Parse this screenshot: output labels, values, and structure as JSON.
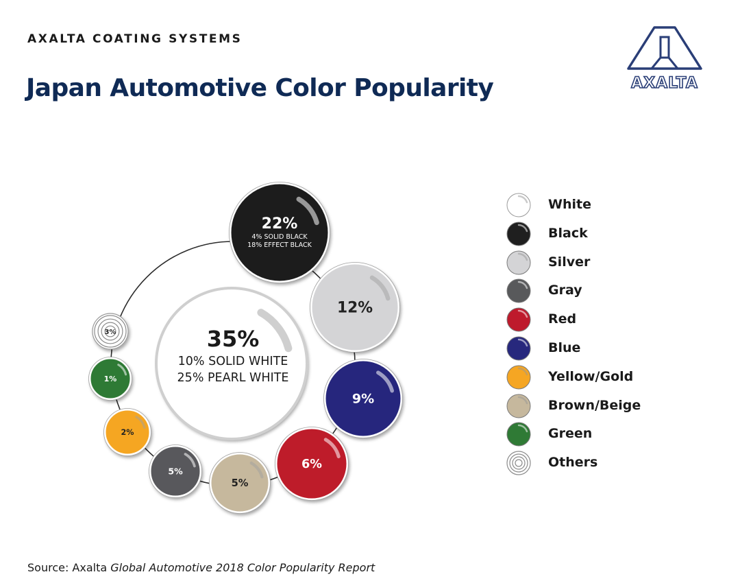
{
  "header": {
    "company": "AXALTA COATING SYSTEMS",
    "title": "Japan Automotive Color Popularity"
  },
  "logo": {
    "wordmark": "AXALTA"
  },
  "chart_data": {
    "type": "bubble",
    "title": "Japan Automotive Color Popularity",
    "center": {
      "name": "White",
      "value": 35,
      "label": "35%",
      "detail1": "10% SOLID WHITE",
      "detail2": "25% PEARL WHITE",
      "color": "#ffffff"
    },
    "bubbles": [
      {
        "name": "Black",
        "value": 22,
        "label": "22%",
        "detail1": "4% SOLID BLACK",
        "detail2": "18% EFFECT BLACK",
        "color": "#1f1f1f",
        "text_color": "#ffffff"
      },
      {
        "name": "Silver",
        "value": 12,
        "label": "12%",
        "color": "#d4d4d6",
        "text_color": "#222222"
      },
      {
        "name": "Blue",
        "value": 9,
        "label": "9%",
        "color": "#27287d",
        "text_color": "#ffffff"
      },
      {
        "name": "Red",
        "value": 6,
        "label": "6%",
        "color": "#be1a2c",
        "text_color": "#ffffff"
      },
      {
        "name": "Brown/Beige",
        "value": 5,
        "label": "5%",
        "color": "#c6b89d",
        "text_color": "#222222"
      },
      {
        "name": "Gray",
        "value": 5,
        "label": "5%",
        "color": "#58595b",
        "text_color": "#ffffff"
      },
      {
        "name": "Yellow/Gold",
        "value": 2,
        "label": "2%",
        "color": "#f5a623",
        "text_color": "#222222"
      },
      {
        "name": "Green",
        "value": 1,
        "label": "1%",
        "color": "#2f7a35",
        "text_color": "#ffffff"
      },
      {
        "name": "Others",
        "value": 3,
        "label": "3%",
        "color": "#ffffff",
        "text_color": "#222222",
        "pattern": "rings"
      }
    ],
    "legend": [
      {
        "name": "White",
        "color": "#ffffff"
      },
      {
        "name": "Black",
        "color": "#1f1f1f"
      },
      {
        "name": "Silver",
        "color": "#d4d4d6"
      },
      {
        "name": "Gray",
        "color": "#58595b"
      },
      {
        "name": "Red",
        "color": "#be1a2c"
      },
      {
        "name": "Blue",
        "color": "#27287d"
      },
      {
        "name": "Yellow/Gold",
        "color": "#f5a623"
      },
      {
        "name": "Brown/Beige",
        "color": "#c6b89d"
      },
      {
        "name": "Green",
        "color": "#2f7a35"
      },
      {
        "name": "Others",
        "color": "#ffffff",
        "pattern": "rings"
      }
    ]
  },
  "footer": {
    "source_prefix": "Source: Axalta ",
    "source_title": "Global Automotive 2018 Color Popularity Report"
  }
}
